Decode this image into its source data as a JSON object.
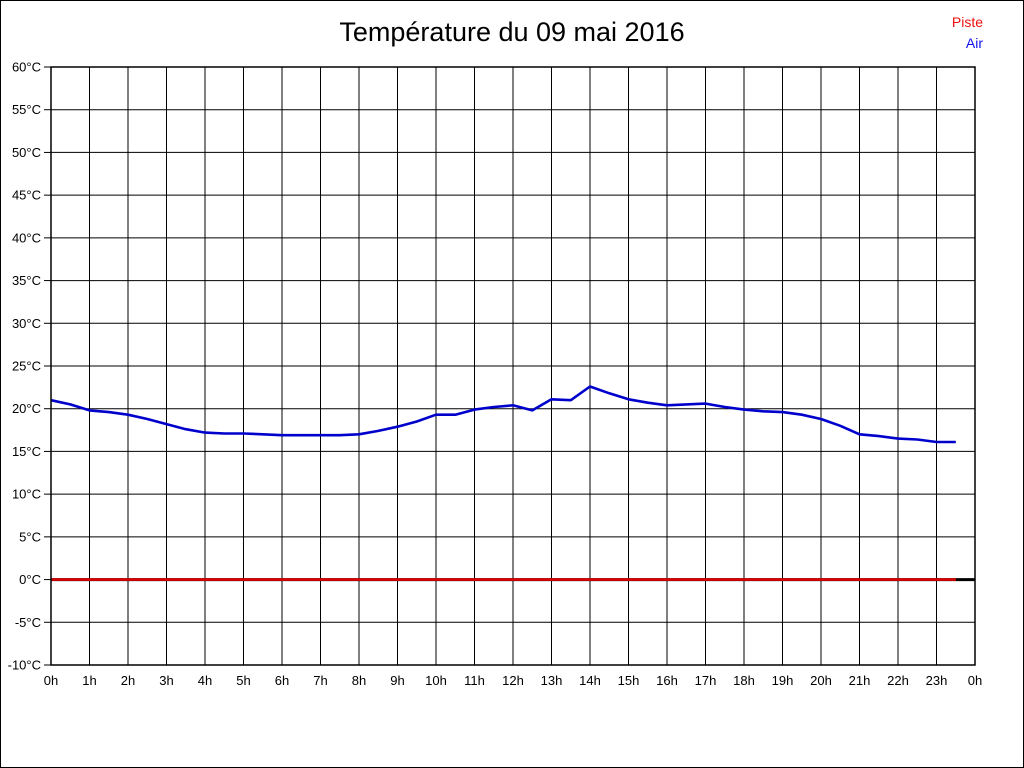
{
  "title": "Température du 09 mai 2016",
  "legend": [
    {
      "label": "Piste",
      "color": "#ee1111"
    },
    {
      "label": "Air",
      "color": "#1111ee"
    }
  ],
  "colors": {
    "background": "#ffffff",
    "grid": "#000000",
    "border": "#000000",
    "zero_line": "#000000",
    "piste_line": "#dd0000",
    "air_line": "#0000cc"
  },
  "chart_data": {
    "type": "line",
    "title": "Température du 09 mai 2016",
    "xlabel": "",
    "ylabel": "",
    "grid": true,
    "zero_line": true,
    "legend_position": "top-right",
    "xlim": [
      0,
      24
    ],
    "ylim": [
      -10,
      60
    ],
    "x_ticks": [
      0,
      1,
      2,
      3,
      4,
      5,
      6,
      7,
      8,
      9,
      10,
      11,
      12,
      13,
      14,
      15,
      16,
      17,
      18,
      19,
      20,
      21,
      22,
      23,
      24
    ],
    "x_tick_labels": [
      "0h",
      "1h",
      "2h",
      "3h",
      "4h",
      "5h",
      "6h",
      "7h",
      "8h",
      "9h",
      "10h",
      "11h",
      "12h",
      "13h",
      "14h",
      "15h",
      "16h",
      "17h",
      "18h",
      "19h",
      "20h",
      "21h",
      "22h",
      "23h",
      "0h"
    ],
    "y_ticks": [
      60,
      55,
      50,
      45,
      40,
      35,
      30,
      25,
      20,
      15,
      10,
      5,
      0,
      -5,
      -10
    ],
    "y_tick_labels": [
      "60°C",
      "55°C",
      "50°C",
      "45°C",
      "40°C",
      "35°C",
      "30°C",
      "25°C",
      "20°C",
      "15°C",
      "10°C",
      "5°C",
      "0°C",
      "-5°C",
      "-10°C"
    ],
    "series": [
      {
        "name": "Piste",
        "color": "#dd0000",
        "x": [
          0,
          23.5
        ],
        "y": [
          0,
          0
        ]
      },
      {
        "name": "Air",
        "color": "#0000cc",
        "x": [
          0,
          0.5,
          1,
          1.5,
          2,
          2.5,
          3,
          3.5,
          4,
          4.5,
          5,
          5.5,
          6,
          6.5,
          7,
          7.5,
          8,
          8.5,
          9,
          9.5,
          10,
          10.5,
          11,
          11.5,
          12,
          12.5,
          13,
          13.5,
          14,
          14.5,
          15,
          15.5,
          16,
          16.5,
          17,
          17.5,
          18,
          18.5,
          19,
          19.5,
          20,
          20.5,
          21,
          21.5,
          22,
          22.5,
          23,
          23.5
        ],
        "y": [
          21.0,
          20.5,
          19.8,
          19.6,
          19.3,
          18.8,
          18.2,
          17.6,
          17.2,
          17.1,
          17.1,
          17.0,
          16.9,
          16.9,
          16.9,
          16.9,
          17.0,
          17.4,
          17.9,
          18.5,
          19.3,
          19.3,
          19.9,
          20.2,
          20.4,
          19.8,
          21.1,
          21.0,
          22.6,
          21.8,
          21.1,
          20.7,
          20.4,
          20.5,
          20.6,
          20.2,
          19.9,
          19.7,
          19.6,
          19.3,
          18.8,
          18.0,
          17.0,
          16.8,
          16.5,
          16.4,
          16.1,
          16.1
        ]
      }
    ]
  }
}
